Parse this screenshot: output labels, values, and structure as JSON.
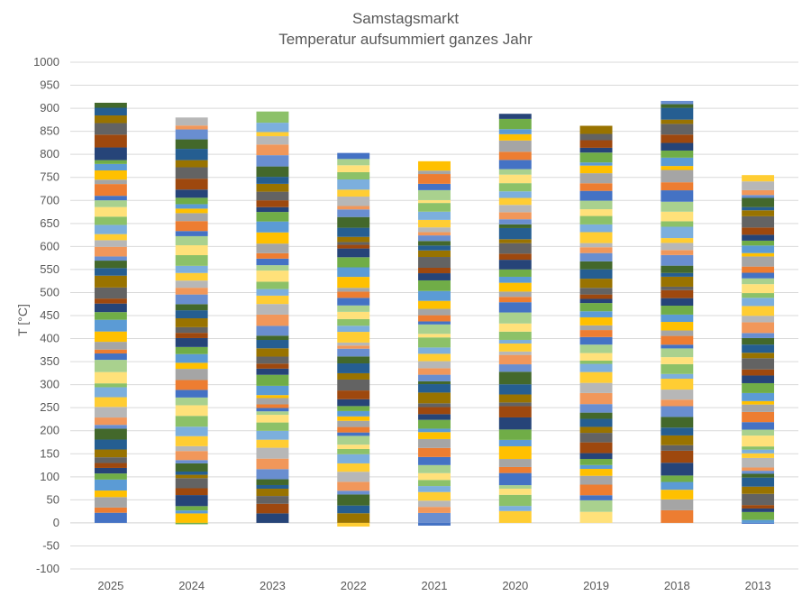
{
  "chart_data": {
    "type": "bar",
    "stacked": true,
    "title": "Samstagsmarkt",
    "subtitle": "Temperatur aufsummiert ganzes Jahr",
    "ylabel": "T [°C]",
    "xlabel": "",
    "ylim": [
      -100,
      1000
    ],
    "ytick_step": 50,
    "grid": true,
    "legend": "none",
    "categories": [
      "2025",
      "2024",
      "2023",
      "2022",
      "2021",
      "2020",
      "2019",
      "2018",
      "2013"
    ],
    "negative_totals": [
      0,
      -3,
      0,
      -8,
      -6,
      0,
      0,
      0,
      -2
    ],
    "positive_totals": [
      912,
      880,
      893,
      803,
      785,
      888,
      862,
      916,
      755
    ],
    "segment_counts": [
      52,
      52,
      52,
      52,
      52,
      52,
      52,
      52,
      52
    ],
    "palette": [
      "#4472C4",
      "#ED7D31",
      "#A5A5A5",
      "#FFC000",
      "#5B9BD5",
      "#70AD47",
      "#264478",
      "#9E480E",
      "#636363",
      "#997300",
      "#255E91",
      "#43682B",
      "#698ED0",
      "#F1975A",
      "#B7B7B7",
      "#FFCD33",
      "#7CAFDD",
      "#8CC168",
      "#FFE17A",
      "#A9D18E"
    ]
  }
}
